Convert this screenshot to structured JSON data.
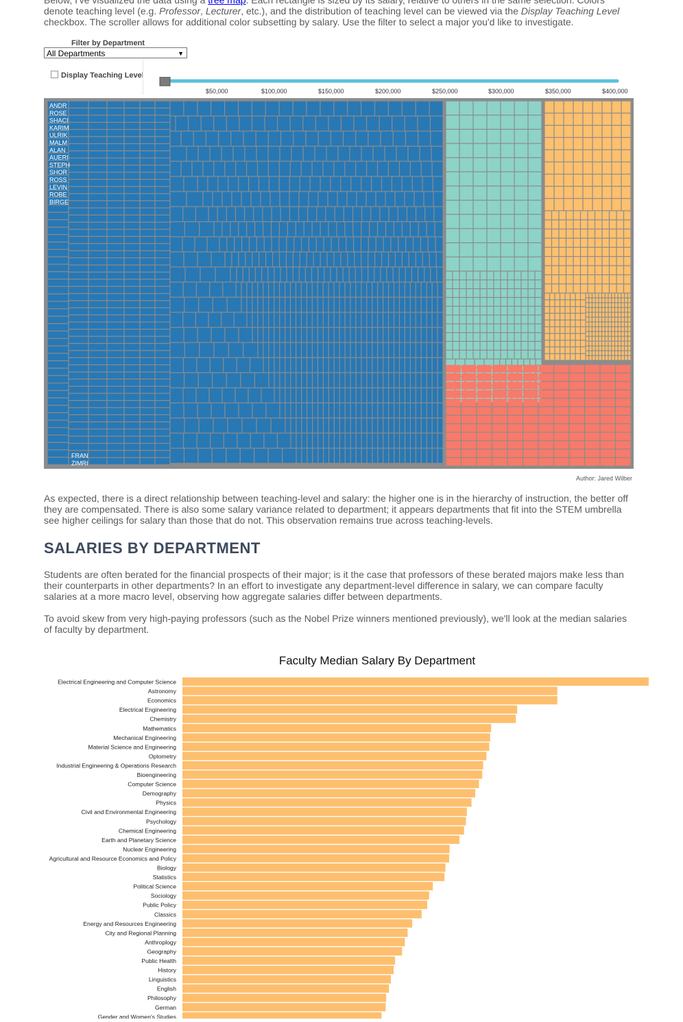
{
  "intro": {
    "pre": "Below, I've visualized the data using a ",
    "link": "tree map",
    "post1": ". Each rectangle is sized by its salary, relative to others in the same selection. Colors denote teaching level (e.g. ",
    "em1": "Professor",
    "sep": ", ",
    "em2": "Lecturer",
    "post2": ", etc.), and the distribution of teaching level can be viewed via the ",
    "em3": "Display Teaching Level",
    "post3": " checkbox. The scroller allows for additional color subsetting by salary. Use the filter to select a major you'd like to investigate."
  },
  "filter": {
    "label": "Filter by Department",
    "selected": "All Departments"
  },
  "checkbox_label": "Display Teaching Level",
  "slider_ticks": [
    "$50,000",
    "$100,000",
    "$150,000",
    "$200,000",
    "$250,000",
    "$300,000",
    "$350,000",
    "$400,000"
  ],
  "treemap": {
    "colors": {
      "blue": "#2878b4",
      "teal": "#8dd3c7",
      "orange": "#fdc06e",
      "red": "#f87a6a",
      "border": "#8c8c8c"
    },
    "top_names": [
      "ANDR",
      "ROSE",
      "SHACI",
      "KARIM",
      "ULRIK",
      "MALM",
      "ALAN",
      "AUERI",
      "STEPH",
      "SHOR",
      "ROSS",
      "LEVIN",
      "ROBE",
      "BIRGE"
    ],
    "bottom_names": [
      "FRAN",
      "ZIMRI"
    ]
  },
  "author": "Author: Jared Wilber",
  "para1": "As expected, there is a direct relationship between teaching-level and salary: the higher one is in the hierarchy of instruction, the better off they are compensated. There is also some salary variance related to department; it appears departments that fit into the STEM umbrella see higher ceilings for salary than those that do not. This observation remains true across teaching-levels.",
  "heading": "SALARIES BY DEPARTMENT",
  "para2": "Students are often berated for the financial prospects of their major; is it the case that professors of these berated majors make less than their counterparts in other departments? In an effort to investigate any department-level difference in salary, we can compare faculty salaries at a more macro level, observing how aggregate salaries differ between departments.",
  "para3": "To avoid skew from very high-paying professors (such as the Nobel Prize winners mentioned previously), we'll look at the median salaries of faculty by department.",
  "chart_data": {
    "type": "bar",
    "orientation": "horizontal",
    "title": "Faculty Median Salary By Department",
    "color": "#fdbf6f",
    "grid": false,
    "categories": [
      "Electrical Engineering and Computer Science",
      "Astronomy",
      "Economics",
      "Electrical Engineering",
      "Chemistry",
      "Mathematics",
      "Mechanical Engineering",
      "Material Science and Engineering",
      "Optometry",
      "Industrial Engineering & Operations Research",
      "Bioengineering",
      "Computer Science",
      "Demography",
      "Physics",
      "Civil and Environmental Engineering",
      "Psychology",
      "Chemical Engineering",
      "Earth and Planetary Science",
      "Nuclear Engineering",
      "Agricultural and Resource Economics and Policy",
      "Biology",
      "Statistics",
      "Political Science",
      "Sociology",
      "Public Policy",
      "Classics",
      "Energy and Resources Engineering",
      "City and Regional Planning",
      "Anthroplogy",
      "Geography",
      "Public Health",
      "History",
      "Linguistics",
      "English",
      "Philosophy",
      "German",
      "Gender and Women's Studies"
    ],
    "values": [
      100,
      80.4,
      80.4,
      71.8,
      71.5,
      66.2,
      66.0,
      65.8,
      65.2,
      64.5,
      64.3,
      63.6,
      62.8,
      62.0,
      61.0,
      60.8,
      60.4,
      59.4,
      57.3,
      57.2,
      56.4,
      56.2,
      53.7,
      52.9,
      52.5,
      51.3,
      49.3,
      48.3,
      47.7,
      47.1,
      45.6,
      45.3,
      44.7,
      44.3,
      43.7,
      43.6,
      42.7
    ],
    "value_scale": "relative to the largest bar (100)"
  }
}
